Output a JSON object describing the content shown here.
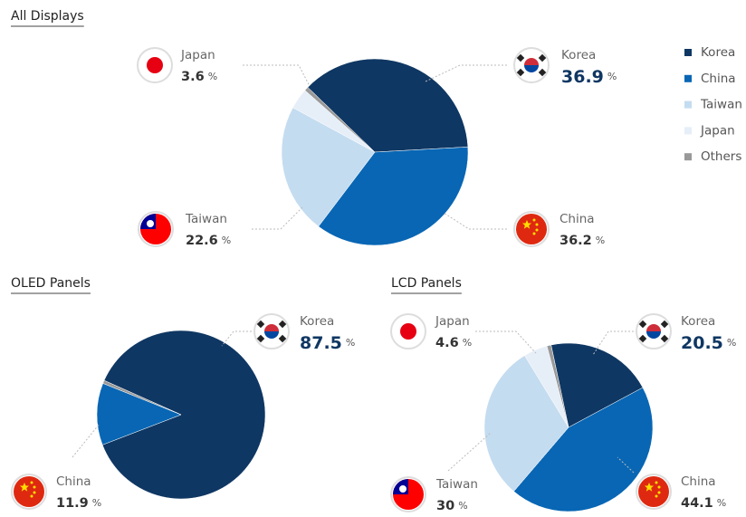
{
  "chart_data": [
    {
      "type": "pie",
      "title": "All Displays",
      "categories": [
        "Korea",
        "China",
        "Taiwan",
        "Japan",
        "Others"
      ],
      "values": [
        36.9,
        36.2,
        22.6,
        3.6,
        0.7
      ],
      "colors": [
        "#0f3763",
        "#0866b4",
        "#c4dcf0",
        "#e6eef8",
        "#999999"
      ],
      "unit": "%",
      "legend": "right"
    },
    {
      "type": "pie",
      "title": "OLED Panels",
      "categories": [
        "Korea",
        "China",
        "Others"
      ],
      "values": [
        87.5,
        11.9,
        0.6
      ],
      "colors": [
        "#0f3763",
        "#0866b4",
        "#999999"
      ],
      "unit": "%"
    },
    {
      "type": "pie",
      "title": "LCD Panels",
      "categories": [
        "Korea",
        "China",
        "Taiwan",
        "Japan",
        "Others"
      ],
      "values": [
        20.5,
        44.1,
        30.0,
        4.6,
        0.8
      ],
      "colors": [
        "#0f3763",
        "#0866b4",
        "#c4dcf0",
        "#e6eef8",
        "#999999"
      ],
      "unit": "%"
    }
  ]
}
